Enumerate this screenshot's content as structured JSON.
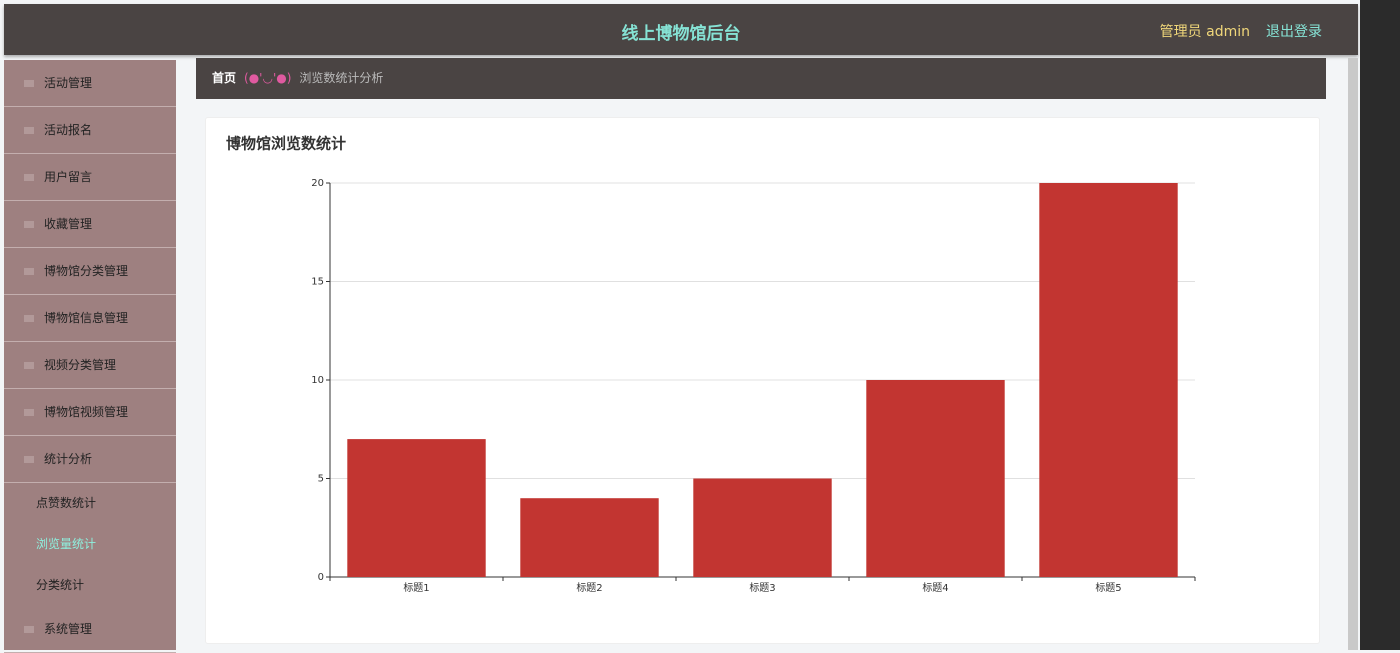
{
  "header": {
    "title": "线上博物馆后台",
    "user": "管理员 admin",
    "logout": "退出登录"
  },
  "sidebar": [
    {
      "label": "活动管理"
    },
    {
      "label": "活动报名"
    },
    {
      "label": "用户留言"
    },
    {
      "label": "收藏管理"
    },
    {
      "label": "博物馆分类管理"
    },
    {
      "label": "博物馆信息管理"
    },
    {
      "label": "视频分类管理"
    },
    {
      "label": "博物馆视频管理"
    },
    {
      "label": "统计分析",
      "children": [
        "点赞数统计",
        "浏览量统计",
        "分类统计"
      ]
    },
    {
      "label": "系统管理"
    }
  ],
  "breadcrumb": {
    "home": "首页",
    "separator": "(●'◡'●)",
    "current": "浏览数统计分析"
  },
  "chart_data": {
    "type": "bar",
    "title": "博物馆浏览数统计",
    "categories": [
      "标题1",
      "标题2",
      "标题3",
      "标题4",
      "标题5"
    ],
    "values": [
      7,
      4,
      5,
      10,
      20
    ],
    "color": "#c23531",
    "ylim": [
      0,
      20
    ],
    "yticks": [
      0,
      5,
      10,
      15,
      20
    ],
    "grid": true
  }
}
